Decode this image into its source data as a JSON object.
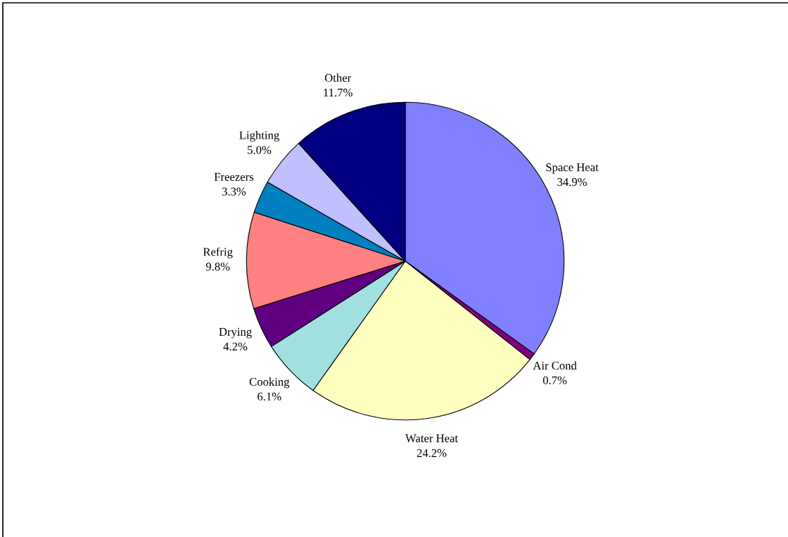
{
  "chart_data": {
    "type": "pie",
    "categories": [
      "Space Heat",
      "Air Cond",
      "Water Heat",
      "Cooking",
      "Drying",
      "Refrig",
      "Freezers",
      "Lighting",
      "Other"
    ],
    "values": [
      34.9,
      0.7,
      24.2,
      6.1,
      4.2,
      9.8,
      3.3,
      5.0,
      11.7
    ],
    "value_labels": [
      "34.9%",
      "0.7%",
      "24.2%",
      "6.1%",
      "4.2%",
      "9.8%",
      "3.3%",
      "5.0%",
      "11.7%"
    ],
    "colors": [
      "#8080ff",
      "#800080",
      "#ffffc0",
      "#a0e0e0",
      "#600080",
      "#ff8080",
      "#0080c0",
      "#c0c0ff",
      "#000080"
    ],
    "legend": false
  }
}
